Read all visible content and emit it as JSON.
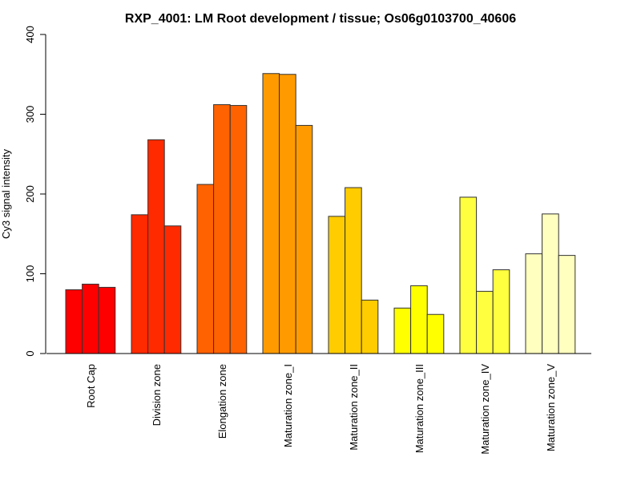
{
  "chart_data": {
    "type": "bar",
    "title": "RXP_4001: LM Root development / tissue; Os06g0103700_40606",
    "xlabel": "",
    "ylabel": "Cy3 signal intensity",
    "ylim": [
      0,
      400
    ],
    "yticks": [
      0,
      100,
      200,
      300,
      400
    ],
    "grid": false,
    "categories": [
      "Root Cap",
      "Division zone",
      "Elongation zone",
      "Maturation zone_I",
      "Maturation zone_II",
      "Maturation zone_III",
      "Maturation zone_IV",
      "Maturation zone_V"
    ],
    "group_colors": [
      "#FF0000",
      "#FF2A00",
      "#FF6200",
      "#FF9B00",
      "#FFCC00",
      "#FFFF00",
      "#FFFF40",
      "#FFFFBF"
    ],
    "replicates_per_group": 3,
    "values": [
      [
        80,
        87,
        83
      ],
      [
        174,
        268,
        160
      ],
      [
        212,
        312,
        311
      ],
      [
        351,
        350,
        286
      ],
      [
        172,
        208,
        67
      ],
      [
        57,
        85,
        49
      ],
      [
        196,
        78,
        105
      ],
      [
        125,
        175,
        123
      ]
    ]
  }
}
